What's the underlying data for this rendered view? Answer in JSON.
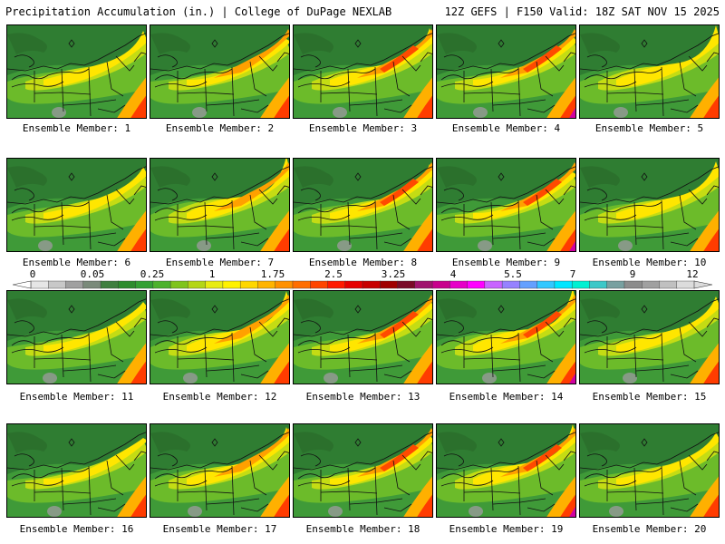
{
  "header": {
    "left": "Precipitation Accumulation (in.) | College of DuPage NEXLAB",
    "right": "12Z GEFS | F150 Valid: 18Z SAT NOV 15 2025"
  },
  "members": [
    {
      "label": "Ensemble Member: 1"
    },
    {
      "label": "Ensemble Member: 2"
    },
    {
      "label": "Ensemble Member: 3"
    },
    {
      "label": "Ensemble Member: 4"
    },
    {
      "label": "Ensemble Member: 5"
    },
    {
      "label": "Ensemble Member: 6"
    },
    {
      "label": "Ensemble Member: 7"
    },
    {
      "label": "Ensemble Member: 8"
    },
    {
      "label": "Ensemble Member: 9"
    },
    {
      "label": "Ensemble Member: 10"
    },
    {
      "label": "Ensemble Member: 11"
    },
    {
      "label": "Ensemble Member: 12"
    },
    {
      "label": "Ensemble Member: 13"
    },
    {
      "label": "Ensemble Member: 14"
    },
    {
      "label": "Ensemble Member: 15"
    },
    {
      "label": "Ensemble Member: 16"
    },
    {
      "label": "Ensemble Member: 17"
    },
    {
      "label": "Ensemble Member: 18"
    },
    {
      "label": "Ensemble Member: 19"
    },
    {
      "label": "Ensemble Member: 20"
    }
  ],
  "legend": {
    "tick_labels": [
      "0",
      "0.05",
      "0.25",
      "1",
      "1.75",
      "2.5",
      "3.25",
      "4",
      "5.5",
      "7",
      "9",
      "12"
    ],
    "colors": [
      "#e6e6e6",
      "#c8c8c8",
      "#a0a0a0",
      "#7a8a7a",
      "#3f7f3f",
      "#2d8c2d",
      "#33a033",
      "#4cb22c",
      "#7fc41c",
      "#b4d616",
      "#e8ec12",
      "#fff200",
      "#ffd700",
      "#ffb400",
      "#ff9100",
      "#ff6e00",
      "#ff4500",
      "#ff1a00",
      "#e60000",
      "#c80000",
      "#a00000",
      "#7a0a28",
      "#a0146e",
      "#c8008c",
      "#e600c8",
      "#ff00ff",
      "#c864ff",
      "#9682ff",
      "#64a0ff",
      "#32c8ff",
      "#00e6ff",
      "#00f0d2",
      "#3cc8c8",
      "#78a0a0",
      "#8c8c8c",
      "#a0a0a0",
      "#c0c0c0",
      "#dcdcdc"
    ]
  }
}
